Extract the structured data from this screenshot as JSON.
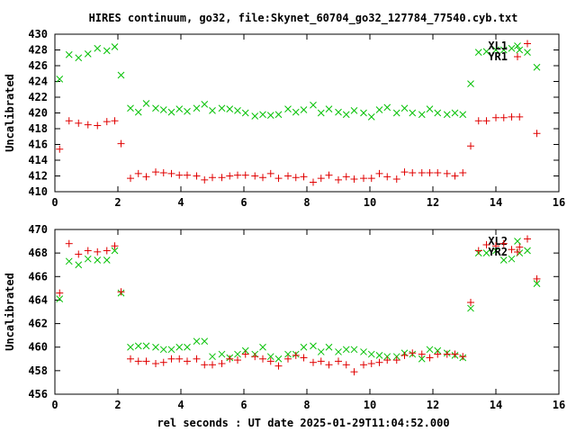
{
  "title": "HIRES continuum, go32, file:Skynet_60704_go32_127784_77540.cyb.txt",
  "xlabel": "rel seconds : UT date 2025-01-29T11:04:52.000",
  "colors": {
    "green": "#00c000",
    "red": "#e00000"
  },
  "chart_data": [
    {
      "type": "scatter",
      "ylabel": "Uncalibrated",
      "xlim": [
        0,
        16
      ],
      "ylim": [
        410,
        430
      ],
      "xticks": [
        0,
        2,
        4,
        6,
        8,
        10,
        12,
        14,
        16
      ],
      "yticks": [
        410,
        412,
        414,
        416,
        418,
        420,
        422,
        424,
        426,
        428,
        430
      ],
      "legend": "top-right",
      "series": [
        {
          "name": "XL1",
          "marker": "x",
          "color": "#00c000",
          "x": [
            0.15,
            0.45,
            0.75,
            1.05,
            1.35,
            1.65,
            1.9,
            2.1,
            2.4,
            2.65,
            2.9,
            3.2,
            3.45,
            3.7,
            3.95,
            4.2,
            4.5,
            4.75,
            5.0,
            5.3,
            5.55,
            5.8,
            6.05,
            6.35,
            6.6,
            6.85,
            7.1,
            7.4,
            7.65,
            7.9,
            8.2,
            8.45,
            8.7,
            9.0,
            9.25,
            9.5,
            9.8,
            10.05,
            10.3,
            10.55,
            10.85,
            11.1,
            11.35,
            11.65,
            11.9,
            12.15,
            12.45,
            12.7,
            12.95,
            13.2,
            13.45,
            13.7,
            14.0,
            14.25,
            14.5,
            14.75,
            15.0,
            15.3
          ],
          "y": [
            424.3,
            427.4,
            427.0,
            427.5,
            428.2,
            427.9,
            428.4,
            424.8,
            420.6,
            420.1,
            421.2,
            420.6,
            420.4,
            420.1,
            420.5,
            420.2,
            420.6,
            421.1,
            420.3,
            420.6,
            420.5,
            420.3,
            420.0,
            419.6,
            419.8,
            419.7,
            419.8,
            420.5,
            420.1,
            420.4,
            421.0,
            420.0,
            420.5,
            420.1,
            419.8,
            420.3,
            420.0,
            419.5,
            420.4,
            420.7,
            420.0,
            420.6,
            420.0,
            419.8,
            420.5,
            420.0,
            419.8,
            420.0,
            419.8,
            423.7,
            427.7,
            427.8,
            428.0,
            428.0,
            428.2,
            428.0,
            427.7,
            425.8
          ]
        },
        {
          "name": "YR1",
          "marker": "+",
          "color": "#e00000",
          "x": [
            0.15,
            0.45,
            0.75,
            1.05,
            1.35,
            1.65,
            1.9,
            2.1,
            2.4,
            2.65,
            2.9,
            3.2,
            3.45,
            3.7,
            3.95,
            4.2,
            4.5,
            4.75,
            5.0,
            5.3,
            5.55,
            5.8,
            6.05,
            6.35,
            6.6,
            6.85,
            7.1,
            7.4,
            7.65,
            7.9,
            8.2,
            8.45,
            8.7,
            9.0,
            9.25,
            9.5,
            9.8,
            10.05,
            10.3,
            10.55,
            10.85,
            11.1,
            11.35,
            11.65,
            11.9,
            12.15,
            12.45,
            12.7,
            12.95,
            13.2,
            13.45,
            13.7,
            14.0,
            14.25,
            14.5,
            14.75,
            15.0,
            15.3
          ],
          "y": [
            415.4,
            419.0,
            418.7,
            418.5,
            418.4,
            418.9,
            419.0,
            416.1,
            411.7,
            412.3,
            411.9,
            412.5,
            412.4,
            412.3,
            412.1,
            412.1,
            412.0,
            411.5,
            411.8,
            411.8,
            412.0,
            412.1,
            412.1,
            412.0,
            411.8,
            412.3,
            411.7,
            412.0,
            411.8,
            411.9,
            411.2,
            411.7,
            412.1,
            411.5,
            411.9,
            411.6,
            411.7,
            411.7,
            412.3,
            411.9,
            411.6,
            412.5,
            412.4,
            412.4,
            412.4,
            412.4,
            412.3,
            412.0,
            412.4,
            415.8,
            419.0,
            419.0,
            419.4,
            419.4,
            419.5,
            419.5,
            428.8,
            417.4
          ]
        }
      ]
    },
    {
      "type": "scatter",
      "ylabel": "Uncalibrated",
      "xlim": [
        0,
        16
      ],
      "ylim": [
        456,
        470
      ],
      "xticks": [
        0,
        2,
        4,
        6,
        8,
        10,
        12,
        14,
        16
      ],
      "yticks": [
        456,
        458,
        460,
        462,
        464,
        466,
        468,
        470
      ],
      "legend": "top-right",
      "series": [
        {
          "name": "XL2",
          "marker": "x",
          "color": "#00c000",
          "x": [
            0.15,
            0.45,
            0.75,
            1.05,
            1.35,
            1.65,
            1.9,
            2.1,
            2.4,
            2.65,
            2.9,
            3.2,
            3.45,
            3.7,
            3.95,
            4.2,
            4.5,
            4.75,
            5.0,
            5.3,
            5.55,
            5.8,
            6.05,
            6.35,
            6.6,
            6.85,
            7.1,
            7.4,
            7.65,
            7.9,
            8.2,
            8.45,
            8.7,
            9.0,
            9.25,
            9.5,
            9.8,
            10.05,
            10.3,
            10.55,
            10.85,
            11.1,
            11.35,
            11.65,
            11.9,
            12.15,
            12.45,
            12.7,
            12.95,
            13.2,
            13.45,
            13.7,
            14.0,
            14.25,
            14.5,
            14.75,
            15.0,
            15.3
          ],
          "y": [
            464.1,
            467.3,
            467.0,
            467.5,
            467.4,
            467.4,
            468.2,
            464.6,
            460.0,
            460.1,
            460.1,
            460.0,
            459.8,
            459.8,
            460.0,
            460.0,
            460.5,
            460.5,
            459.2,
            459.4,
            459.1,
            459.4,
            459.7,
            459.4,
            460.0,
            459.2,
            459.0,
            459.4,
            459.4,
            460.0,
            460.1,
            459.6,
            460.0,
            459.6,
            459.8,
            459.8,
            459.6,
            459.4,
            459.3,
            459.2,
            459.2,
            459.5,
            459.4,
            459.0,
            459.8,
            459.7,
            459.5,
            459.3,
            459.1,
            463.3,
            468.0,
            468.0,
            468.2,
            467.4,
            467.5,
            468.0,
            468.2,
            465.4
          ]
        },
        {
          "name": "YR2",
          "marker": "+",
          "color": "#e00000",
          "x": [
            0.15,
            0.45,
            0.75,
            1.05,
            1.35,
            1.65,
            1.9,
            2.1,
            2.4,
            2.65,
            2.9,
            3.2,
            3.45,
            3.7,
            3.95,
            4.2,
            4.5,
            4.75,
            5.0,
            5.3,
            5.55,
            5.8,
            6.05,
            6.35,
            6.6,
            6.85,
            7.1,
            7.4,
            7.65,
            7.9,
            8.2,
            8.45,
            8.7,
            9.0,
            9.25,
            9.5,
            9.8,
            10.05,
            10.3,
            10.55,
            10.85,
            11.1,
            11.35,
            11.65,
            11.9,
            12.15,
            12.45,
            12.7,
            12.95,
            13.2,
            13.45,
            13.7,
            14.0,
            14.25,
            14.5,
            14.75,
            15.0,
            15.3
          ],
          "y": [
            464.6,
            468.8,
            467.9,
            468.2,
            468.1,
            468.2,
            468.6,
            464.7,
            459.0,
            458.8,
            458.8,
            458.6,
            458.7,
            459.0,
            459.0,
            458.8,
            459.0,
            458.5,
            458.5,
            458.6,
            459.0,
            458.9,
            459.4,
            459.2,
            459.0,
            458.8,
            458.4,
            459.0,
            459.3,
            459.1,
            458.7,
            458.8,
            458.5,
            458.8,
            458.5,
            457.9,
            458.5,
            458.6,
            458.7,
            458.9,
            458.9,
            459.3,
            459.5,
            459.4,
            459.1,
            459.4,
            459.4,
            459.4,
            459.2,
            463.8,
            468.2,
            468.7,
            468.6,
            468.8,
            468.3,
            468.5,
            469.2,
            465.8
          ]
        }
      ]
    }
  ]
}
